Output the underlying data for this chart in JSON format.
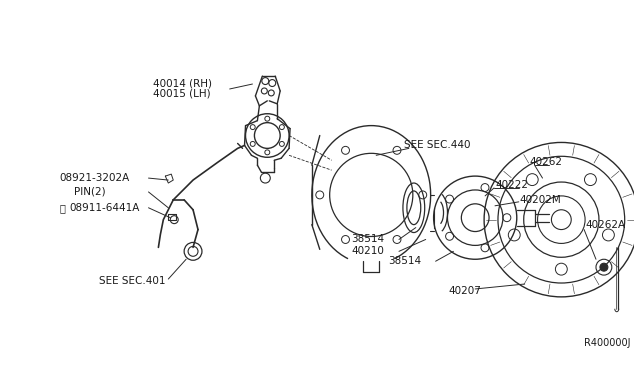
{
  "bg_color": "#ffffff",
  "line_color": "#2a2a2a",
  "text_color": "#1a1a1a",
  "fig_width": 6.4,
  "fig_height": 3.72,
  "dpi": 100,
  "xlim": [
    0,
    640
  ],
  "ylim": [
    0,
    372
  ]
}
